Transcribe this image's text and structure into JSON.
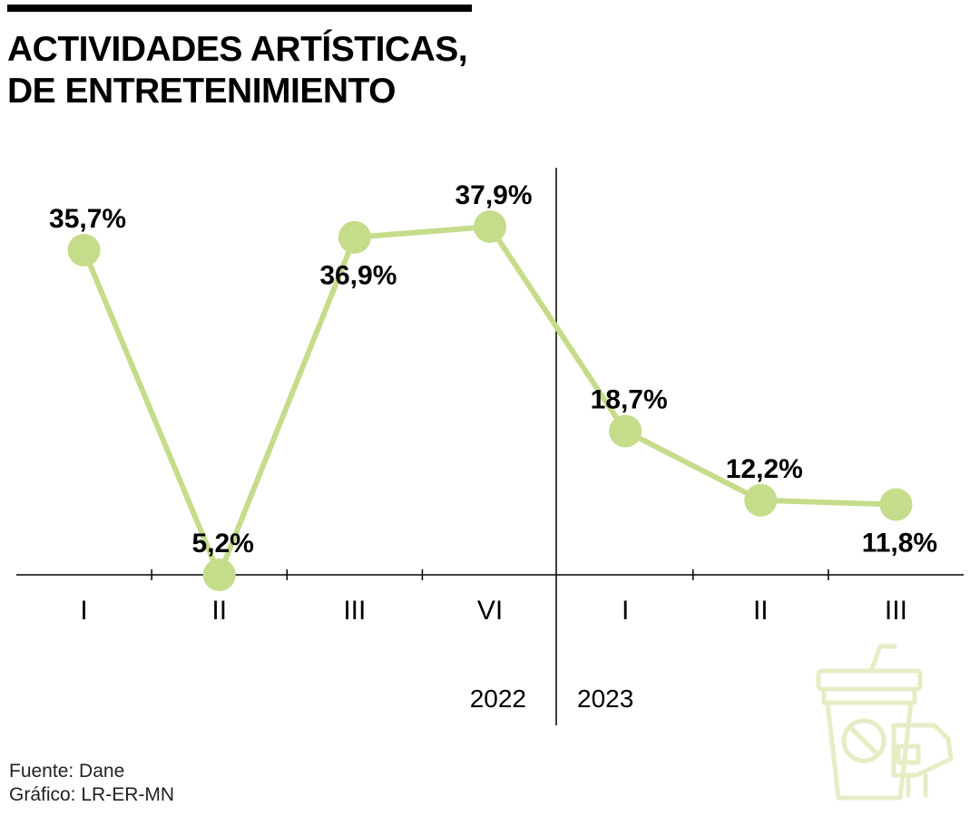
{
  "title": {
    "line1": "ACTIVIDADES ARTÍSTICAS,",
    "line2": "DE ENTRETENIMIENTO"
  },
  "source": {
    "fuente": "Fuente: Dane",
    "grafico": "Gráfico: LR-ER-MN"
  },
  "colors": {
    "line": "#c5dc8a",
    "marker": "#c5dc8a",
    "icon": "#e6edc5",
    "axis": "#000000"
  },
  "icon": "drink-cup-no-food-icon",
  "chart_data": {
    "type": "line",
    "title": "ACTIVIDADES ARTÍSTICAS, DE ENTRETENIMIENTO",
    "categories": [
      "I",
      "II",
      "III",
      "VI",
      "I",
      "II",
      "III"
    ],
    "values": [
      35.7,
      5.2,
      36.9,
      37.9,
      18.7,
      12.2,
      11.8
    ],
    "labels": [
      "35,7%",
      "5,2%",
      "36,9%",
      "37,9%",
      "18,7%",
      "12,2%",
      "11,8%"
    ],
    "label_position": [
      "above",
      "above",
      "below",
      "above",
      "above",
      "above",
      "below"
    ],
    "groups": [
      {
        "year": "2022",
        "categories": [
          "I",
          "II",
          "III",
          "VI"
        ]
      },
      {
        "year": "2023",
        "categories": [
          "I",
          "II",
          "III"
        ]
      }
    ],
    "ylim": [
      5.2,
      37.9
    ],
    "xlabel": "",
    "ylabel": "",
    "grid": false,
    "legend": "none"
  }
}
